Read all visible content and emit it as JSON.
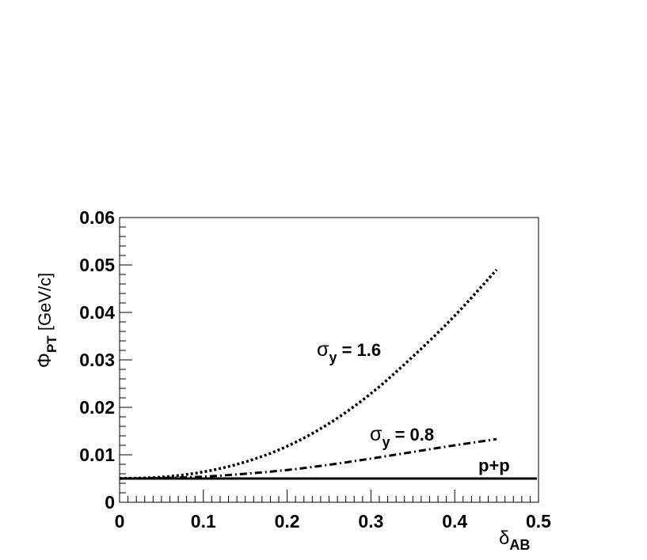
{
  "chart_data": {
    "type": "line",
    "title": "",
    "xlabel": {
      "symbol": "δ",
      "subscript": "AB"
    },
    "ylabel": {
      "symbol": "Φ",
      "subscript": "PT",
      "unit": "[GeV/c]"
    },
    "xlim": [
      0,
      0.5
    ],
    "ylim": [
      0,
      0.06
    ],
    "xticks": [
      "0",
      "0.1",
      "0.2",
      "0.3",
      "0.4",
      "0.5"
    ],
    "yticks": [
      "0",
      "0.01",
      "0.02",
      "0.03",
      "0.04",
      "0.05",
      "0.06"
    ],
    "grid": false,
    "series": [
      {
        "name": "σ_y = 1.6",
        "style": "dotted",
        "x": [
          0,
          0.05,
          0.1,
          0.15,
          0.2,
          0.25,
          0.3,
          0.35,
          0.4,
          0.45
        ],
        "y": [
          0.005,
          0.0053,
          0.0064,
          0.0085,
          0.0118,
          0.0166,
          0.0229,
          0.0307,
          0.0393,
          0.049
        ]
      },
      {
        "name": "σ_y = 0.8",
        "style": "dash-dot",
        "x": [
          0,
          0.05,
          0.1,
          0.15,
          0.2,
          0.25,
          0.3,
          0.35,
          0.4,
          0.45
        ],
        "y": [
          0.005,
          0.0051,
          0.0054,
          0.006,
          0.0068,
          0.0079,
          0.0092,
          0.0106,
          0.012,
          0.0133
        ]
      },
      {
        "name": "p+p",
        "style": "solid",
        "x": [
          0,
          0.5
        ],
        "y": [
          0.005,
          0.005
        ]
      }
    ],
    "annotations": [
      {
        "symbol": "σ",
        "subscript": "y",
        "text": " = 1.6",
        "series": 0
      },
      {
        "symbol": "σ",
        "subscript": "y",
        "text": " = 0.8",
        "series": 1
      },
      {
        "symbol": "",
        "subscript": "",
        "text": "p+p",
        "series": 2
      }
    ]
  }
}
